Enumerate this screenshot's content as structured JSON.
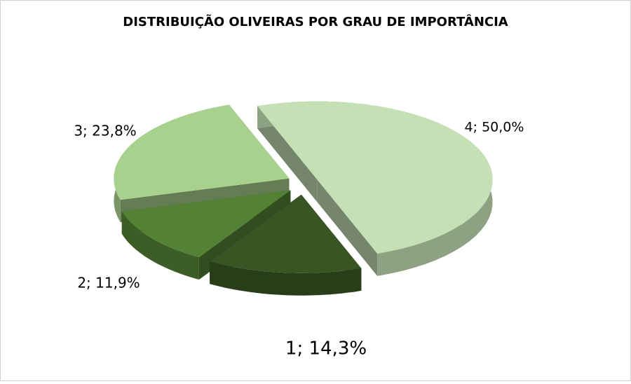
{
  "chart_data": {
    "type": "pie3d",
    "title": "DISTRIBUIÇÃO OLIVEIRAS POR GRAU DE IMPORTÂNCIA",
    "values": [
      14.3,
      11.9,
      23.8,
      50.0
    ],
    "value_labels": [
      "1; 14,3%",
      "2; 11,9%",
      "3; 23,8%",
      "4; 50,0%"
    ],
    "colors": [
      "#375623",
      "#548235",
      "#a9d18e",
      "#c5e0b4"
    ]
  }
}
